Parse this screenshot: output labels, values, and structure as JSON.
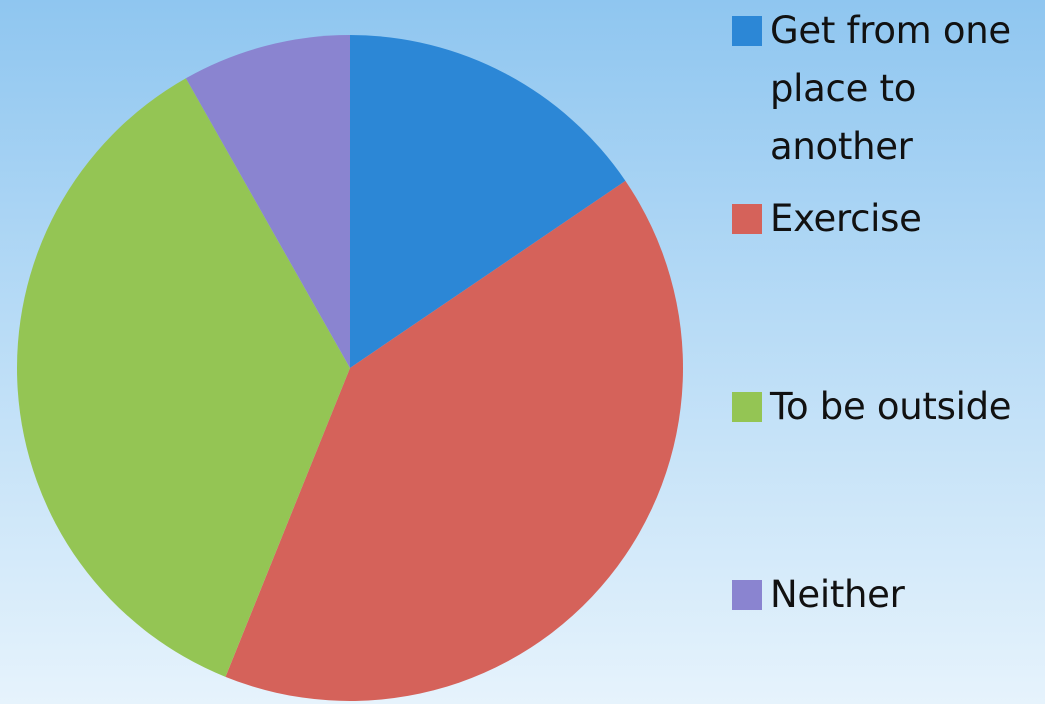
{
  "chart_data": {
    "type": "pie",
    "title": "",
    "legend_placement": "right",
    "start_angle_deg": 0,
    "direction": "clockwise",
    "slices": [
      {
        "label": "Get from one place to another",
        "value": 15.5,
        "color": "#2c87d6"
      },
      {
        "label": "Exercise",
        "value": 40.6,
        "color": "#d5625a"
      },
      {
        "label": "To be outside",
        "value": 35.7,
        "color": "#94c554"
      },
      {
        "label": "Neither",
        "value": 8.2,
        "color": "#8a84d0"
      }
    ]
  }
}
